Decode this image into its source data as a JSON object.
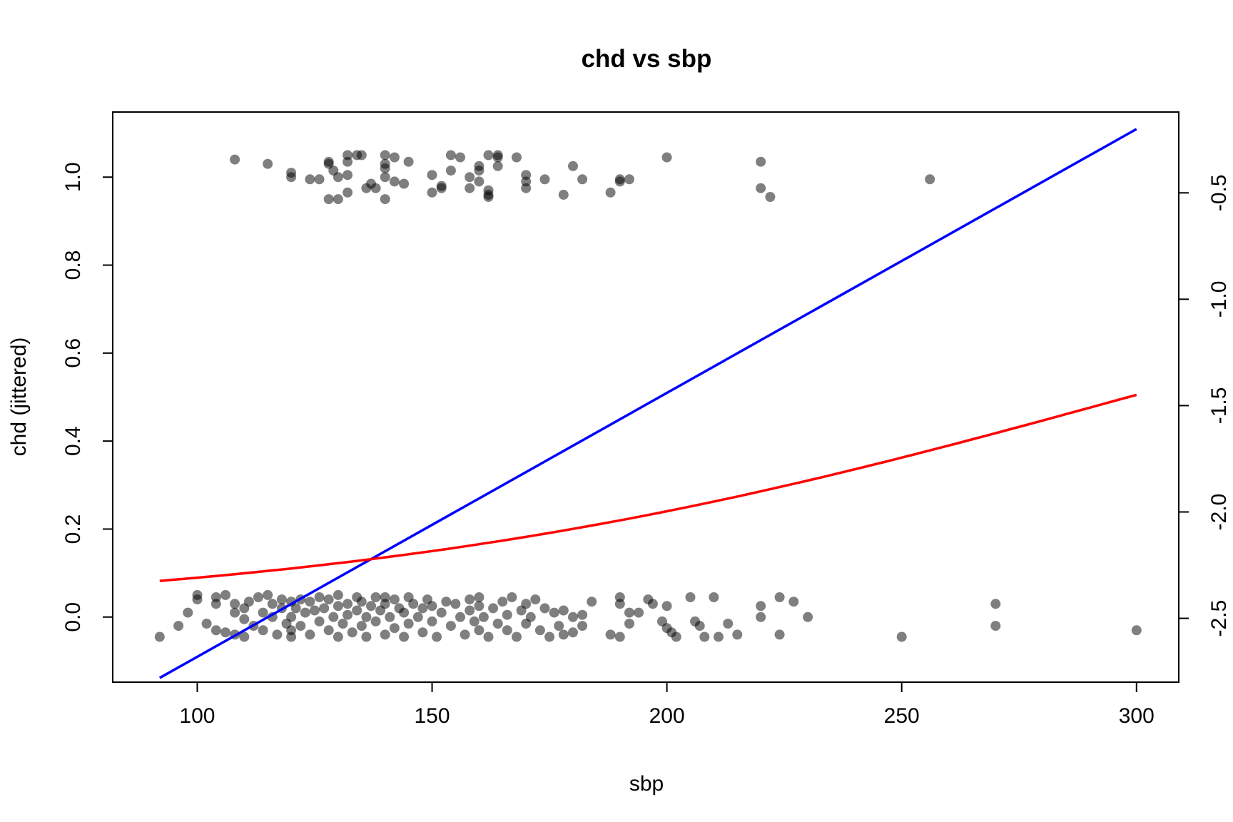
{
  "chart_data": {
    "type": "scatter",
    "title": "chd vs sbp",
    "xlabel": "sbp",
    "ylabel": "chd (jittered)",
    "xlim": [
      82,
      309
    ],
    "ylim": [
      -0.148,
      1.148
    ],
    "y2lim": [
      -2.8,
      -0.12
    ],
    "xticks": [
      100,
      150,
      200,
      250,
      300
    ],
    "yticks": [
      0.0,
      0.2,
      0.4,
      0.6,
      0.8,
      1.0
    ],
    "y2ticks": [
      -2.5,
      -2.0,
      -1.5,
      -1.0,
      -0.5
    ],
    "xtick_labels": [
      "100",
      "150",
      "200",
      "250",
      "300"
    ],
    "ytick_labels": [
      "0.0",
      "0.2",
      "0.4",
      "0.6",
      "0.8",
      "1.0"
    ],
    "y2tick_labels": [
      "-2.5",
      "-2.0",
      "-1.5",
      "-1.0",
      "-0.5"
    ],
    "grid": false,
    "point_color": "#000000",
    "point_opacity": 0.5,
    "series": [
      {
        "kind": "points",
        "points_chd1": [
          [
            108,
            1.04
          ],
          [
            115,
            1.03
          ],
          [
            120,
            1.01
          ],
          [
            120,
            1.0
          ],
          [
            124,
            0.995
          ],
          [
            126,
            0.995
          ],
          [
            128,
            1.035
          ],
          [
            128,
            1.03
          ],
          [
            128,
            0.95
          ],
          [
            129,
            1.015
          ],
          [
            130,
            0.95
          ],
          [
            130,
            1.0
          ],
          [
            132,
            1.05
          ],
          [
            132,
            1.035
          ],
          [
            132,
            1.005
          ],
          [
            132,
            0.965
          ],
          [
            134,
            1.05
          ],
          [
            135,
            1.05
          ],
          [
            136,
            0.975
          ],
          [
            137,
            0.985
          ],
          [
            138,
            0.975
          ],
          [
            140,
            1.05
          ],
          [
            140,
            1.03
          ],
          [
            140,
            1.02
          ],
          [
            140,
            1.0
          ],
          [
            140,
            0.95
          ],
          [
            142,
            1.045
          ],
          [
            142,
            0.99
          ],
          [
            144,
            0.985
          ],
          [
            145,
            1.035
          ],
          [
            150,
            1.005
          ],
          [
            150,
            0.965
          ],
          [
            152,
            0.975
          ],
          [
            152,
            0.98
          ],
          [
            154,
            1.015
          ],
          [
            154,
            1.05
          ],
          [
            156,
            1.045
          ],
          [
            158,
            1.0
          ],
          [
            158,
            0.975
          ],
          [
            160,
            1.025
          ],
          [
            160,
            1.015
          ],
          [
            160,
            0.99
          ],
          [
            162,
            1.05
          ],
          [
            162,
            0.97
          ],
          [
            162,
            0.955
          ],
          [
            162,
            0.96
          ],
          [
            164,
            1.05
          ],
          [
            164,
            1.045
          ],
          [
            164,
            1.025
          ],
          [
            168,
            1.045
          ],
          [
            170,
            1.005
          ],
          [
            170,
            0.99
          ],
          [
            170,
            0.975
          ],
          [
            174,
            0.995
          ],
          [
            178,
            0.96
          ],
          [
            180,
            1.025
          ],
          [
            182,
            0.995
          ],
          [
            188,
            0.965
          ],
          [
            190,
            0.99
          ],
          [
            190,
            0.995
          ],
          [
            192,
            0.995
          ],
          [
            200,
            1.045
          ],
          [
            220,
            1.035
          ],
          [
            220,
            0.975
          ],
          [
            222,
            0.955
          ],
          [
            256,
            0.995
          ]
        ],
        "points_chd0": [
          [
            92,
            -0.045
          ],
          [
            96,
            -0.02
          ],
          [
            98,
            0.01
          ],
          [
            100,
            0.04
          ],
          [
            100,
            0.05
          ],
          [
            102,
            -0.015
          ],
          [
            104,
            -0.03
          ],
          [
            104,
            0.03
          ],
          [
            104,
            0.045
          ],
          [
            106,
            -0.035
          ],
          [
            106,
            0.05
          ],
          [
            108,
            0.03
          ],
          [
            108,
            0.01
          ],
          [
            108,
            -0.04
          ],
          [
            110,
            0.02
          ],
          [
            110,
            -0.005
          ],
          [
            110,
            -0.045
          ],
          [
            111,
            0.035
          ],
          [
            112,
            -0.02
          ],
          [
            113,
            0.045
          ],
          [
            114,
            0.01
          ],
          [
            114,
            -0.03
          ],
          [
            115,
            0.05
          ],
          [
            116,
            0.03
          ],
          [
            116,
            0.0
          ],
          [
            117,
            -0.04
          ],
          [
            118,
            0.02
          ],
          [
            118,
            0.04
          ],
          [
            119,
            -0.015
          ],
          [
            120,
            0.035
          ],
          [
            120,
            0.0
          ],
          [
            120,
            -0.03
          ],
          [
            120,
            -0.045
          ],
          [
            121,
            0.02
          ],
          [
            122,
            0.04
          ],
          [
            122,
            -0.02
          ],
          [
            123,
            0.01
          ],
          [
            124,
            -0.04
          ],
          [
            124,
            0.035
          ],
          [
            125,
            0.015
          ],
          [
            126,
            -0.01
          ],
          [
            126,
            0.045
          ],
          [
            127,
            0.02
          ],
          [
            128,
            -0.03
          ],
          [
            128,
            0.04
          ],
          [
            129,
            0.0
          ],
          [
            130,
            0.025
          ],
          [
            130,
            -0.045
          ],
          [
            130,
            0.05
          ],
          [
            131,
            -0.015
          ],
          [
            132,
            0.03
          ],
          [
            132,
            0.005
          ],
          [
            133,
            -0.035
          ],
          [
            134,
            0.045
          ],
          [
            134,
            0.015
          ],
          [
            135,
            -0.02
          ],
          [
            135,
            0.035
          ],
          [
            136,
            0.0
          ],
          [
            136,
            -0.045
          ],
          [
            137,
            0.025
          ],
          [
            138,
            0.045
          ],
          [
            138,
            -0.01
          ],
          [
            139,
            0.015
          ],
          [
            140,
            -0.04
          ],
          [
            140,
            0.03
          ],
          [
            140,
            0.045
          ],
          [
            141,
            0.0
          ],
          [
            142,
            -0.025
          ],
          [
            142,
            0.04
          ],
          [
            143,
            0.02
          ],
          [
            144,
            -0.045
          ],
          [
            144,
            0.01
          ],
          [
            145,
            0.045
          ],
          [
            145,
            -0.015
          ],
          [
            146,
            0.03
          ],
          [
            147,
            0.0
          ],
          [
            148,
            -0.035
          ],
          [
            148,
            0.02
          ],
          [
            149,
            0.04
          ],
          [
            150,
            -0.01
          ],
          [
            150,
            0.025
          ],
          [
            151,
            -0.045
          ],
          [
            152,
            0.01
          ],
          [
            153,
            0.035
          ],
          [
            154,
            -0.02
          ],
          [
            155,
            0.03
          ],
          [
            156,
            0.0
          ],
          [
            157,
            -0.04
          ],
          [
            158,
            0.04
          ],
          [
            158,
            0.015
          ],
          [
            159,
            -0.01
          ],
          [
            160,
            0.045
          ],
          [
            160,
            0.025
          ],
          [
            160,
            -0.03
          ],
          [
            161,
            0.0
          ],
          [
            162,
            -0.045
          ],
          [
            163,
            0.02
          ],
          [
            164,
            -0.015
          ],
          [
            165,
            0.035
          ],
          [
            166,
            0.005
          ],
          [
            166,
            -0.03
          ],
          [
            167,
            0.045
          ],
          [
            168,
            -0.045
          ],
          [
            169,
            0.015
          ],
          [
            170,
            0.03
          ],
          [
            170,
            -0.015
          ],
          [
            171,
            0.0
          ],
          [
            172,
            0.04
          ],
          [
            173,
            -0.03
          ],
          [
            174,
            0.02
          ],
          [
            175,
            -0.045
          ],
          [
            176,
            0.01
          ],
          [
            177,
            -0.02
          ],
          [
            178,
            0.015
          ],
          [
            178,
            -0.04
          ],
          [
            180,
            0.0
          ],
          [
            180,
            -0.035
          ],
          [
            182,
            -0.02
          ],
          [
            182,
            0.005
          ],
          [
            184,
            0.035
          ],
          [
            188,
            -0.04
          ],
          [
            190,
            0.045
          ],
          [
            190,
            0.03
          ],
          [
            190,
            -0.045
          ],
          [
            192,
            0.01
          ],
          [
            192,
            -0.015
          ],
          [
            194,
            0.01
          ],
          [
            196,
            0.04
          ],
          [
            197,
            0.03
          ],
          [
            199,
            -0.01
          ],
          [
            200,
            0.025
          ],
          [
            200,
            -0.025
          ],
          [
            201,
            -0.035
          ],
          [
            202,
            -0.045
          ],
          [
            205,
            0.045
          ],
          [
            206,
            -0.01
          ],
          [
            207,
            -0.02
          ],
          [
            208,
            -0.045
          ],
          [
            210,
            0.045
          ],
          [
            211,
            -0.045
          ],
          [
            213,
            -0.015
          ],
          [
            215,
            -0.04
          ],
          [
            220,
            0.025
          ],
          [
            220,
            0.0
          ],
          [
            224,
            0.045
          ],
          [
            224,
            -0.04
          ],
          [
            227,
            0.035
          ],
          [
            230,
            0.0
          ],
          [
            250,
            -0.045
          ],
          [
            270,
            0.03
          ],
          [
            270,
            -0.02
          ],
          [
            300,
            -0.03
          ]
        ]
      },
      {
        "kind": "line",
        "color": "#0000ff",
        "axis": "right",
        "description": "linear fit on right axis scale",
        "from": [
          92,
          -2.78
        ],
        "to": [
          300,
          -0.2
        ]
      },
      {
        "kind": "curve",
        "color": "#ff0000",
        "axis": "left",
        "description": "logistic fit",
        "intercept": -3.49,
        "slope": 0.0117,
        "x_range": [
          92,
          300
        ]
      }
    ]
  }
}
